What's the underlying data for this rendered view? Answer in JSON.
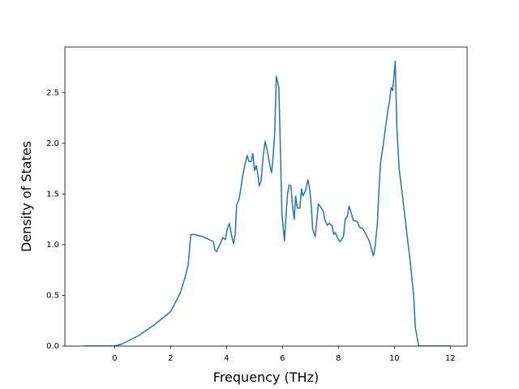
{
  "chart_data": {
    "type": "line",
    "xlabel": "Frequency (THz)",
    "ylabel": "Density of States",
    "x": [
      -1.13,
      0,
      0.26,
      0.84,
      1.42,
      2.0,
      2.34,
      2.51,
      2.63,
      2.72,
      2.86,
      3.15,
      3.38,
      3.53,
      3.58,
      3.64,
      3.79,
      3.87,
      3.96,
      4.02,
      4.1,
      4.19,
      4.25,
      4.31,
      4.36,
      4.45,
      4.51,
      4.57,
      4.65,
      4.74,
      4.8,
      4.88,
      4.94,
      5.0,
      5.06,
      5.12,
      5.17,
      5.23,
      5.32,
      5.38,
      5.46,
      5.55,
      5.61,
      5.66,
      5.72,
      5.78,
      5.87,
      5.92,
      5.98,
      6.07,
      6.13,
      6.18,
      6.24,
      6.3,
      6.36,
      6.42,
      6.47,
      6.53,
      6.62,
      6.68,
      6.73,
      6.82,
      6.91,
      6.97,
      7.02,
      7.08,
      7.17,
      7.23,
      7.28,
      7.37,
      7.46,
      7.51,
      7.6,
      7.66,
      7.77,
      7.83,
      7.89,
      7.98,
      8.06,
      8.18,
      8.24,
      8.32,
      8.38,
      8.47,
      8.53,
      8.67,
      8.76,
      8.87,
      8.99,
      9.1,
      9.19,
      9.25,
      9.31,
      9.39,
      9.45,
      9.51,
      9.6,
      9.68,
      9.77,
      9.83,
      9.88,
      9.94,
      10.03,
      10.09,
      10.17,
      10.29,
      10.43,
      10.58,
      10.69,
      10.75,
      10.87,
      12.0
    ],
    "series": [
      {
        "name": "DOS",
        "color": "#1f77b4",
        "values": [
          0,
          0,
          0.02,
          0.1,
          0.21,
          0.34,
          0.52,
          0.67,
          0.8,
          1.1,
          1.1,
          1.08,
          1.05,
          1.03,
          0.95,
          0.93,
          1.02,
          1.07,
          1.05,
          1.15,
          1.21,
          1.08,
          1.01,
          1.1,
          1.39,
          1.45,
          1.55,
          1.67,
          1.78,
          1.88,
          1.82,
          1.82,
          1.9,
          1.73,
          1.78,
          1.7,
          1.58,
          1.62,
          1.9,
          2.02,
          1.92,
          1.78,
          1.71,
          1.85,
          2.1,
          2.66,
          2.55,
          2.0,
          1.3,
          1.04,
          1.3,
          1.5,
          1.59,
          1.58,
          1.38,
          1.25,
          1.48,
          1.36,
          1.36,
          1.55,
          1.48,
          1.53,
          1.64,
          1.55,
          1.42,
          1.15,
          1.08,
          1.25,
          1.4,
          1.37,
          1.33,
          1.25,
          1.19,
          1.21,
          1.19,
          1.1,
          1.12,
          1.06,
          1.03,
          1.08,
          1.25,
          1.28,
          1.38,
          1.3,
          1.24,
          1.23,
          1.17,
          1.16,
          1.1,
          1.04,
          0.95,
          0.89,
          0.98,
          1.2,
          1.55,
          1.82,
          1.98,
          2.15,
          2.33,
          2.42,
          2.55,
          2.52,
          2.81,
          2.15,
          1.75,
          1.48,
          1.15,
          0.8,
          0.5,
          0.18,
          0.0,
          0
        ]
      }
    ],
    "xlim": [
      -1.78,
      12.6
    ],
    "xticks": [
      0,
      2,
      4,
      6,
      8,
      10,
      12
    ],
    "ylim": [
      0,
      2.95
    ],
    "yticks": [
      {
        "value": 0,
        "label": "0.0"
      },
      0.5,
      {
        "value": 1,
        "label": "1.0"
      },
      1.5,
      {
        "value": 2,
        "label": "2.0"
      },
      2.5
    ]
  }
}
